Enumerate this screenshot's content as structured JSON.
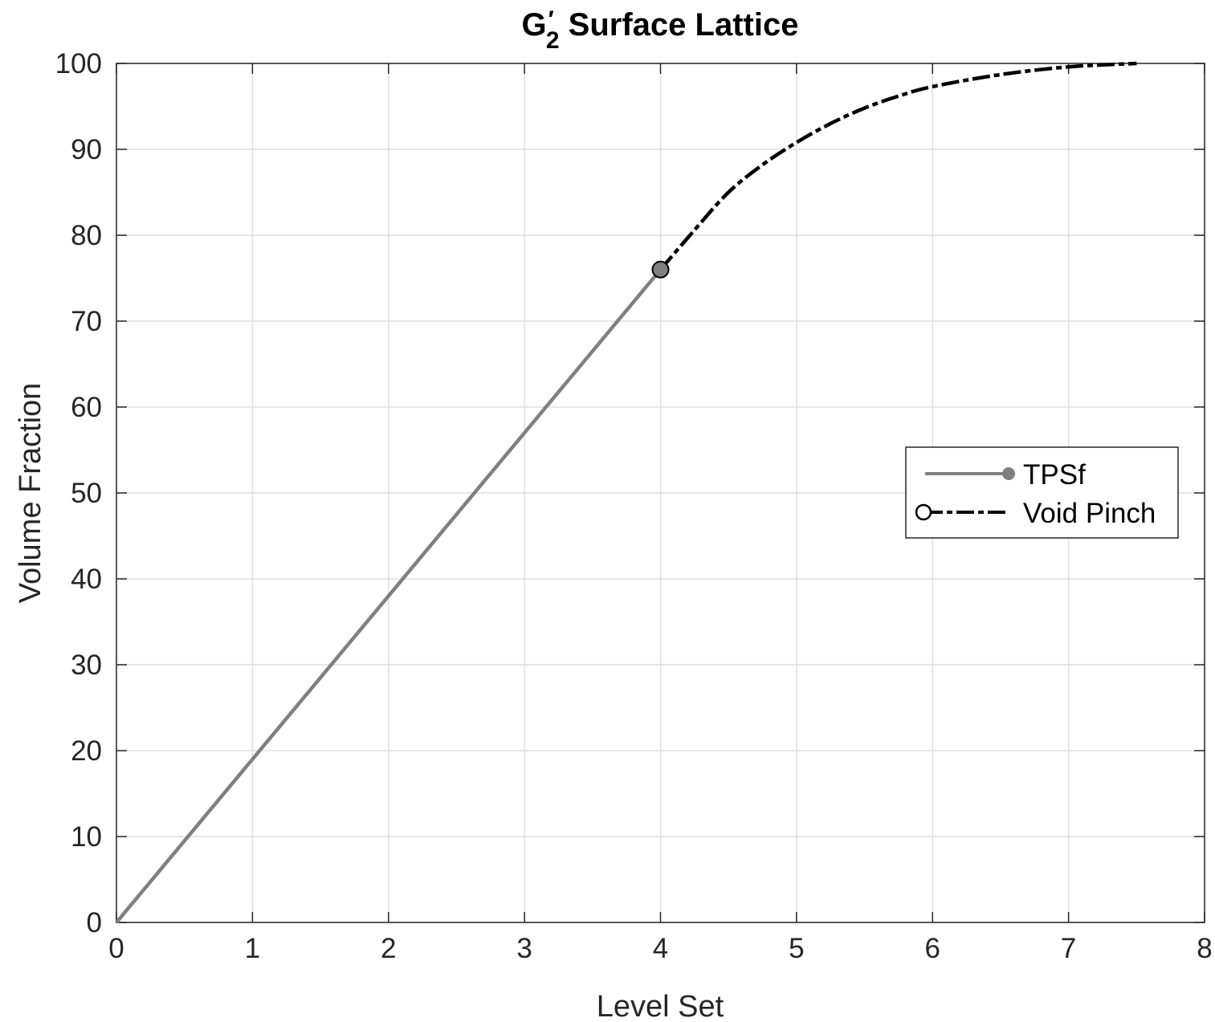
{
  "chart_data": {
    "type": "line",
    "title": {
      "base": "G",
      "prime": "′",
      "subscript": "2",
      "rest": " Surface Lattice"
    },
    "xlabel": "Level Set",
    "ylabel": "Volume Fraction",
    "xlim": [
      0,
      8
    ],
    "ylim": [
      0,
      100
    ],
    "xticks": [
      0,
      1,
      2,
      3,
      4,
      5,
      6,
      7,
      8
    ],
    "yticks": [
      0,
      10,
      20,
      30,
      40,
      50,
      60,
      70,
      80,
      90,
      100
    ],
    "grid": true,
    "legend_position": "right",
    "series": [
      {
        "name": "TPSf",
        "color": "#808080",
        "style": "solid",
        "marker": "filled-circle",
        "x": [
          0,
          4
        ],
        "y": [
          0,
          76
        ]
      },
      {
        "name": "Void Pinch",
        "color": "#000000",
        "style": "dash-dot",
        "marker": "open-circle",
        "x": [
          4.0,
          4.25,
          4.5,
          4.75,
          5.0,
          5.25,
          5.5,
          5.75,
          6.0,
          6.5,
          7.0,
          7.5
        ],
        "y": [
          76.0,
          80.6,
          85.0,
          88.2,
          90.8,
          93.0,
          94.8,
          96.2,
          97.3,
          98.7,
          99.6,
          100.0
        ]
      }
    ],
    "marker_point": {
      "x": 4,
      "y": 76
    }
  }
}
